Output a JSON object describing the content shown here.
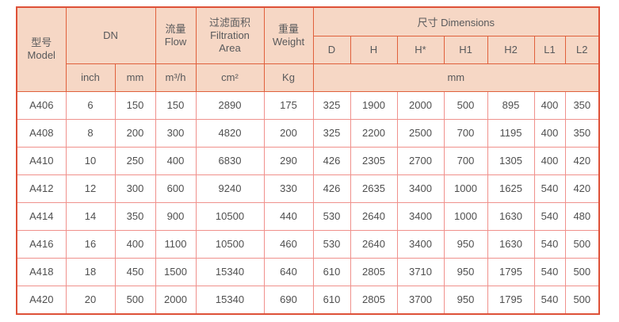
{
  "table": {
    "header": {
      "model": {
        "zh": "型号",
        "en": "Model"
      },
      "dn": "DN",
      "flow": {
        "zh": "流量",
        "en": "Flow"
      },
      "filtration": {
        "zh": "过滤面积",
        "en1": "Filtration",
        "en2": "Area"
      },
      "weight": {
        "zh": "重量",
        "en": "Weight"
      },
      "dimensions": "尺寸 Dimensions",
      "dimension_columns": [
        "D",
        "H",
        "H*",
        "H1",
        "H2",
        "L1",
        "L2"
      ],
      "units": {
        "inch": "inch",
        "mm": "mm",
        "flow": "m³/h",
        "area": "cm²",
        "weight": "Kg",
        "dimensions": "mm"
      }
    },
    "rows": [
      [
        "A406",
        "6",
        "150",
        "150",
        "2890",
        "175",
        "325",
        "1900",
        "2000",
        "500",
        "895",
        "400",
        "350"
      ],
      [
        "A408",
        "8",
        "200",
        "300",
        "4820",
        "200",
        "325",
        "2200",
        "2500",
        "700",
        "1195",
        "400",
        "350"
      ],
      [
        "A410",
        "10",
        "250",
        "400",
        "6830",
        "290",
        "426",
        "2305",
        "2700",
        "700",
        "1305",
        "400",
        "420"
      ],
      [
        "A412",
        "12",
        "300",
        "600",
        "9240",
        "330",
        "426",
        "2635",
        "3400",
        "1000",
        "1625",
        "540",
        "420"
      ],
      [
        "A414",
        "14",
        "350",
        "900",
        "10500",
        "440",
        "530",
        "2640",
        "3400",
        "1000",
        "1630",
        "540",
        "480"
      ],
      [
        "A416",
        "16",
        "400",
        "1100",
        "10500",
        "460",
        "530",
        "2640",
        "3400",
        "950",
        "1630",
        "540",
        "500"
      ],
      [
        "A418",
        "18",
        "450",
        "1500",
        "15340",
        "640",
        "610",
        "2805",
        "3710",
        "950",
        "1795",
        "540",
        "500"
      ],
      [
        "A420",
        "20",
        "500",
        "2000",
        "15340",
        "690",
        "610",
        "2805",
        "3700",
        "950",
        "1795",
        "540",
        "500"
      ]
    ],
    "colors": {
      "header_bg": "#f6d7c5",
      "header_border": "#e0603c",
      "outer_border": "#de5138",
      "body_border": "#f0918c",
      "text": "#58595b"
    }
  }
}
